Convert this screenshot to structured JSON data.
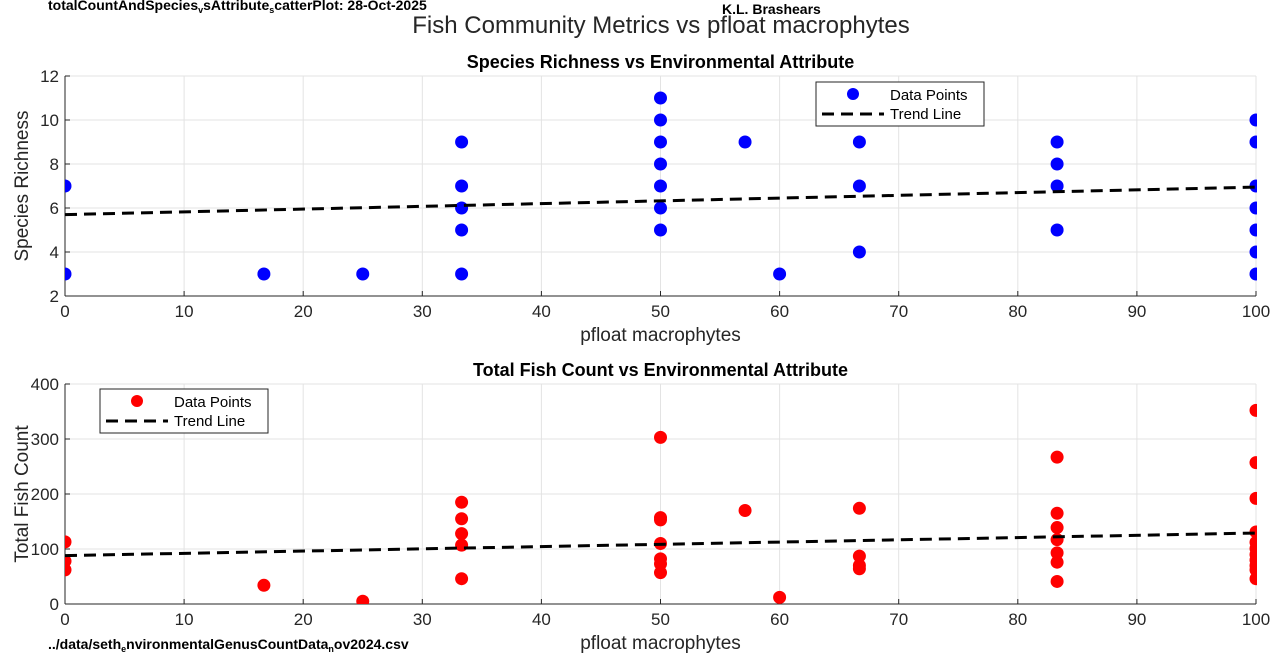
{
  "header": {
    "plot_id_prefix": "totalCountAndSpecies",
    "plot_id_sub1": "v",
    "plot_id_mid": "sAttribute",
    "plot_id_sub2": "s",
    "plot_id_suffix": "catterPlot:  28-Oct-2025",
    "author": "K.L. Brashears",
    "file_prefix": "../data/seth",
    "file_sub1": "e",
    "file_mid": "nvironmentalGenusCountData",
    "file_sub2": "n",
    "file_suffix": "ov2024.csv"
  },
  "figure_title": "Fish Community Metrics vs pfloat macrophytes",
  "colors": {
    "richness": "#0000ff",
    "count": "#ff0000",
    "trend": "#000000",
    "grid": "#e3e3e3",
    "axis": "#262626"
  },
  "chart_data": [
    {
      "type": "scatter",
      "title": "Species Richness vs Environmental Attribute",
      "xlabel": "pfloat macrophytes",
      "ylabel": "Species Richness",
      "xlim": [
        0,
        100
      ],
      "ylim": [
        2,
        12
      ],
      "xticks": [
        0,
        10,
        20,
        30,
        40,
        50,
        60,
        70,
        80,
        90,
        100
      ],
      "yticks": [
        2,
        4,
        6,
        8,
        10,
        12
      ],
      "grid": true,
      "legend_position": "top-right",
      "legend": [
        "Data Points",
        "Trend Line"
      ],
      "color": "#0000ff",
      "points": [
        [
          0,
          7
        ],
        [
          0,
          3
        ],
        [
          16.7,
          3
        ],
        [
          25,
          3
        ],
        [
          33.3,
          9
        ],
        [
          33.3,
          7
        ],
        [
          33.3,
          6
        ],
        [
          33.3,
          5
        ],
        [
          33.3,
          3
        ],
        [
          50,
          11
        ],
        [
          50,
          10
        ],
        [
          50,
          9
        ],
        [
          50,
          8
        ],
        [
          50,
          7
        ],
        [
          50,
          6
        ],
        [
          50,
          5
        ],
        [
          57.1,
          9
        ],
        [
          60,
          3
        ],
        [
          66.7,
          9
        ],
        [
          66.7,
          7
        ],
        [
          66.7,
          4
        ],
        [
          83.3,
          9
        ],
        [
          83.3,
          8
        ],
        [
          83.3,
          7
        ],
        [
          83.3,
          5
        ],
        [
          100,
          10
        ],
        [
          100,
          9
        ],
        [
          100,
          7
        ],
        [
          100,
          6
        ],
        [
          100,
          5
        ],
        [
          100,
          4
        ],
        [
          100,
          3
        ]
      ],
      "trend": {
        "x": [
          0,
          100
        ],
        "y": [
          5.7,
          6.95
        ]
      }
    },
    {
      "type": "scatter",
      "title": "Total Fish Count vs Environmental Attribute",
      "xlabel": "pfloat macrophytes",
      "ylabel": "Total Fish Count",
      "xlim": [
        0,
        100
      ],
      "ylim": [
        0,
        400
      ],
      "xticks": [
        0,
        10,
        20,
        30,
        40,
        50,
        60,
        70,
        80,
        90,
        100
      ],
      "yticks": [
        0,
        100,
        200,
        300,
        400
      ],
      "grid": true,
      "legend_position": "top-left",
      "legend": [
        "Data Points",
        "Trend Line"
      ],
      "color": "#ff0000",
      "points": [
        [
          0,
          113
        ],
        [
          0,
          78
        ],
        [
          0,
          62
        ],
        [
          16.7,
          34
        ],
        [
          25,
          5
        ],
        [
          33.3,
          185
        ],
        [
          33.3,
          155
        ],
        [
          33.3,
          128
        ],
        [
          33.3,
          107
        ],
        [
          33.3,
          46
        ],
        [
          50,
          303
        ],
        [
          50,
          157
        ],
        [
          50,
          153
        ],
        [
          50,
          110
        ],
        [
          50,
          82
        ],
        [
          50,
          73
        ],
        [
          50,
          57
        ],
        [
          57.1,
          170
        ],
        [
          60,
          12
        ],
        [
          66.7,
          174
        ],
        [
          66.7,
          87
        ],
        [
          66.7,
          70
        ],
        [
          66.7,
          64
        ],
        [
          83.3,
          267
        ],
        [
          83.3,
          165
        ],
        [
          83.3,
          139
        ],
        [
          83.3,
          117
        ],
        [
          83.3,
          93
        ],
        [
          83.3,
          76
        ],
        [
          83.3,
          41
        ],
        [
          100,
          352
        ],
        [
          100,
          257
        ],
        [
          100,
          192
        ],
        [
          100,
          131
        ],
        [
          100,
          112
        ],
        [
          100,
          101
        ],
        [
          100,
          90
        ],
        [
          100,
          80
        ],
        [
          100,
          70
        ],
        [
          100,
          62
        ],
        [
          100,
          46
        ]
      ],
      "trend": {
        "x": [
          0,
          100
        ],
        "y": [
          88,
          129
        ]
      }
    }
  ]
}
